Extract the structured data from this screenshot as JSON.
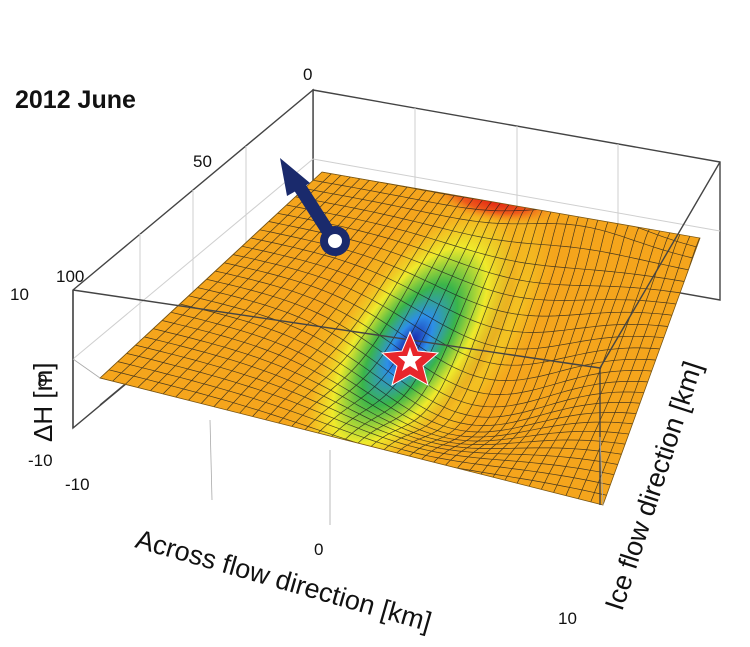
{
  "chart_data": {
    "type": "surface",
    "title": "2012 June",
    "xlabel": "Across flow direction [km]",
    "ylabel": "Ice flow direction [km]",
    "zlabel": "ΔH [m]",
    "x_ticks": [
      "-10",
      "0",
      "10"
    ],
    "y_ticks": [
      "0",
      "50",
      "100"
    ],
    "z_ticks": [
      "10",
      "0",
      "-10"
    ],
    "xlim": [
      -10,
      10
    ],
    "ylim": [
      0,
      100
    ],
    "zlim": [
      -10,
      10
    ],
    "grid": true,
    "surface": {
      "base_value": 0,
      "depression": {
        "center_x": 2,
        "center_y": 55,
        "min_delta_h": -9
      },
      "bump": {
        "center_x": 4,
        "center_y": 5,
        "max_delta_h": 3
      }
    },
    "markers": [
      {
        "name": "star",
        "x": 2,
        "y": 55,
        "color": "#e8262b"
      },
      {
        "name": "flow-arrow",
        "color": "#1a2a6c"
      }
    ],
    "colors": [
      "#1a1aa8",
      "#3399ee",
      "#33bb44",
      "#f2ea2a",
      "#f5a21a",
      "#e02a1a"
    ]
  }
}
